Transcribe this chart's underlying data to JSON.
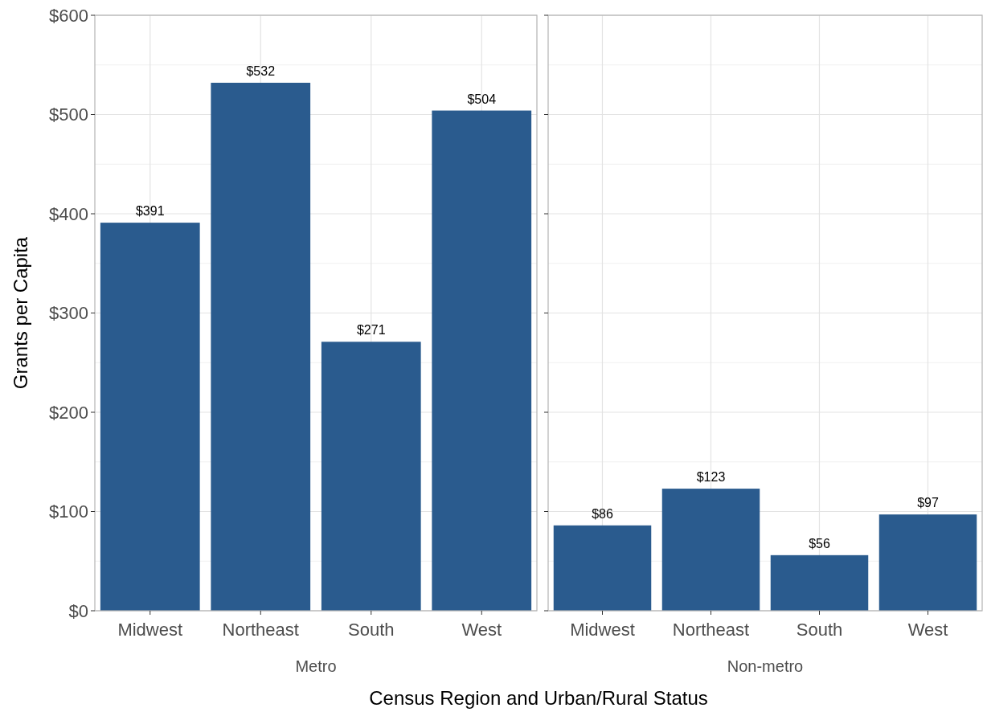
{
  "chart_data": [
    {
      "type": "bar",
      "xlabel": "Metro",
      "ylabel": "Grants per Capita",
      "annotations": [
        "Census Region and Urban/Rural Status"
      ],
      "categories": [
        "Midwest",
        "Northeast",
        "South",
        "West"
      ],
      "values": [
        391,
        532,
        271,
        504
      ],
      "value_labels": [
        "$391",
        "$532",
        "$271",
        "$504"
      ],
      "color": "#2a5b8e",
      "ylim": [
        0,
        600
      ],
      "yticks": [
        {
          "value": 0,
          "label": "$0"
        },
        {
          "value": 100,
          "label": "$100"
        },
        {
          "value": 200,
          "label": "$200"
        },
        {
          "value": 300,
          "label": "$300"
        },
        {
          "value": 400,
          "label": "$400"
        },
        {
          "value": 500,
          "label": "$500"
        },
        {
          "value": 600,
          "label": "$600"
        }
      ],
      "grid": true
    },
    {
      "type": "bar",
      "xlabel": "Non-metro",
      "categories": [
        "Midwest",
        "Northeast",
        "South",
        "West"
      ],
      "values": [
        86,
        123,
        56,
        97
      ],
      "value_labels": [
        "$86",
        "$123",
        "$56",
        "$97"
      ],
      "color": "#2a5b8e",
      "ylim": [
        0,
        600
      ],
      "yticks": [
        {
          "value": 0,
          "label": null
        },
        {
          "value": 100,
          "label": null
        },
        {
          "value": 200,
          "label": null
        },
        {
          "value": 300,
          "label": null
        },
        {
          "value": 400,
          "label": null
        },
        {
          "value": 500,
          "label": null
        },
        {
          "value": 600,
          "label": null
        }
      ],
      "grid": true,
      "tick_labels": "x"
    }
  ]
}
